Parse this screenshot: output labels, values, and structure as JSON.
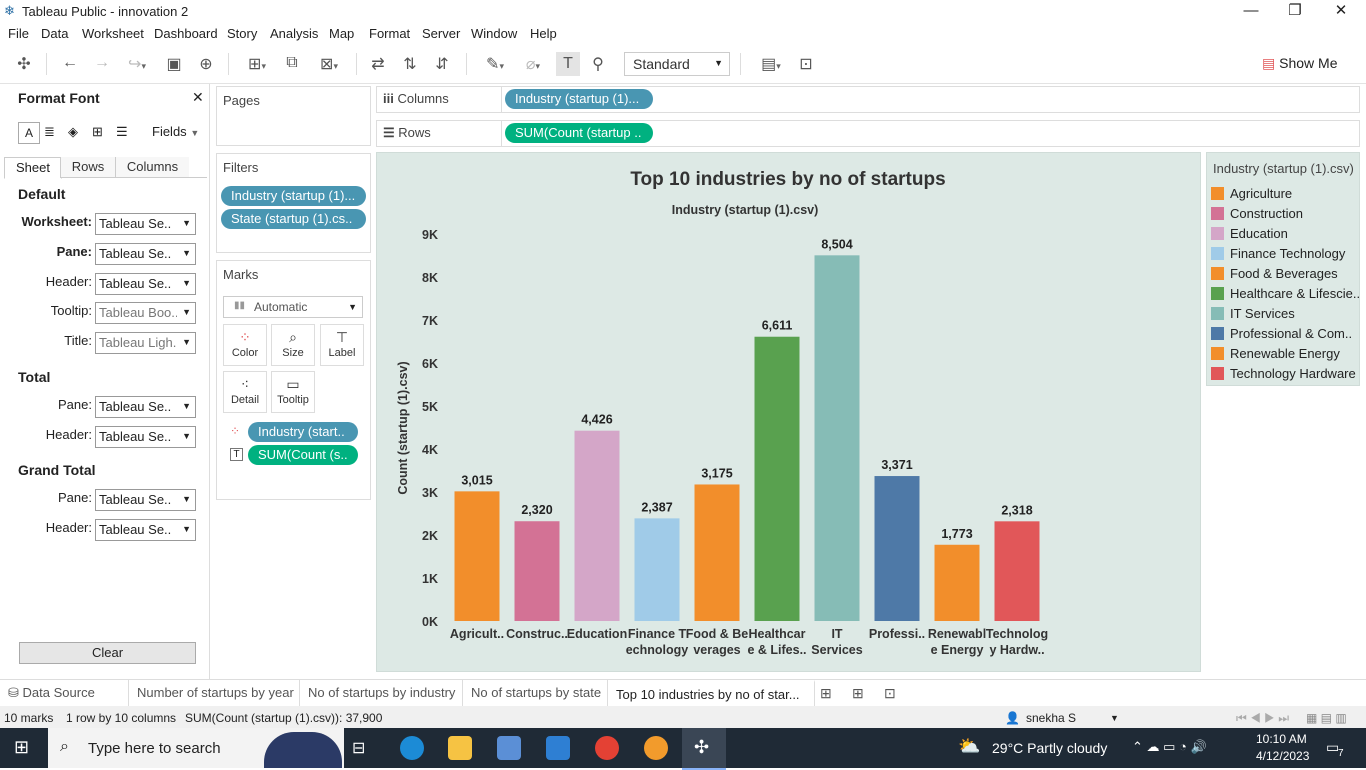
{
  "window": {
    "title": "Tableau Public - innovation 2"
  },
  "menu": [
    "File",
    "Data",
    "Worksheet",
    "Dashboard",
    "Story",
    "Analysis",
    "Map",
    "Format",
    "Server",
    "Window",
    "Help"
  ],
  "toolbar": {
    "view_mode": "Standard",
    "show_me": "Show Me"
  },
  "format_panel": {
    "title": "Format Font",
    "fields_label": "Fields",
    "tabs": [
      "Sheet",
      "Rows",
      "Columns"
    ],
    "sections": {
      "default": "Default",
      "total": "Total",
      "grand_total": "Grand Total"
    },
    "default_rows": [
      {
        "label": "Worksheet:",
        "value": "Tableau Se..",
        "bold": true
      },
      {
        "label": "Pane:",
        "value": "Tableau Se..",
        "bold": true
      },
      {
        "label": "Header:",
        "value": "Tableau Se..",
        "bold": false
      },
      {
        "label": "Tooltip:",
        "value": "Tableau Boo..",
        "bold": false
      },
      {
        "label": "Title:",
        "value": "Tableau Ligh..",
        "bold": false
      }
    ],
    "total_rows": [
      {
        "label": "Pane:",
        "value": "Tableau Se.."
      },
      {
        "label": "Header:",
        "value": "Tableau Se.."
      }
    ],
    "grand_total_rows": [
      {
        "label": "Pane:",
        "value": "Tableau Se.."
      },
      {
        "label": "Header:",
        "value": "Tableau Se.."
      }
    ],
    "clear_label": "Clear"
  },
  "shelves": {
    "pages": "Pages",
    "filters_title": "Filters",
    "filters": [
      "Industry (startup (1)...",
      "State (startup (1).cs.."
    ],
    "marks_title": "Marks",
    "mark_type": "Automatic",
    "mark_buttons": [
      "Color",
      "Size",
      "Label",
      "Detail",
      "Tooltip"
    ],
    "mark_pills": [
      "Industry (start..",
      "SUM(Count (s.."
    ],
    "columns_label": "Columns",
    "columns_pill": "Industry (startup (1)...",
    "rows_label": "Rows",
    "rows_pill": "SUM(Count (startup .."
  },
  "chart_data": {
    "type": "bar",
    "title": "Top 10 industries by no of startups",
    "xlabel": "Industry (startup (1).csv)",
    "ylabel": "Count (startup (1).csv)",
    "ylim": [
      0,
      9000
    ],
    "yticks": [
      0,
      1000,
      2000,
      3000,
      4000,
      5000,
      6000,
      7000,
      8000,
      9000
    ],
    "ytick_labels": [
      "0K",
      "1K",
      "2K",
      "3K",
      "4K",
      "5K",
      "6K",
      "7K",
      "8K",
      "9K"
    ],
    "categories": [
      "Agriculture",
      "Construction",
      "Education",
      "Finance Technology",
      "Food & Beverages",
      "Healthcare & Lifesciences",
      "IT Services",
      "Professional & Commercial Services",
      "Renewable Energy",
      "Technology Hardware"
    ],
    "category_labels": [
      [
        "Agricult.."
      ],
      [
        "Construc.."
      ],
      [
        "Education"
      ],
      [
        "Finance T",
        "echnology"
      ],
      [
        "Food & Be",
        "verages"
      ],
      [
        "Healthcar",
        "e & Lifes.."
      ],
      [
        "IT",
        "Services"
      ],
      [
        "Professi.."
      ],
      [
        "Renewabl",
        "e Energy"
      ],
      [
        "Technolog",
        "y Hardw.."
      ]
    ],
    "values": [
      3015,
      2320,
      4426,
      2387,
      3175,
      6611,
      8504,
      3371,
      1773,
      2318
    ],
    "value_labels": [
      "3,015",
      "2,320",
      "4,426",
      "2,387",
      "3,175",
      "6,611",
      "8,504",
      "3,371",
      "1,773",
      "2,318"
    ],
    "colors": [
      "#f28e2b",
      "#d37295",
      "#d4a6c8",
      "#a0cbe8",
      "#f28e2b",
      "#59a14f",
      "#86bcb6",
      "#4e79a7",
      "#f28e2b",
      "#e15759"
    ]
  },
  "legend": {
    "title": "Industry (startup (1).csv)",
    "items": [
      {
        "label": "Agriculture",
        "color": "#f28e2b"
      },
      {
        "label": "Construction",
        "color": "#d37295"
      },
      {
        "label": "Education",
        "color": "#d4a6c8"
      },
      {
        "label": "Finance Technology",
        "color": "#a0cbe8"
      },
      {
        "label": "Food & Beverages",
        "color": "#f28e2b"
      },
      {
        "label": "Healthcare & Lifescie..",
        "color": "#59a14f"
      },
      {
        "label": "IT Services",
        "color": "#86bcb6"
      },
      {
        "label": "Professional & Com..",
        "color": "#4e79a7"
      },
      {
        "label": "Renewable Energy",
        "color": "#f28e2b"
      },
      {
        "label": "Technology Hardware",
        "color": "#e15759"
      }
    ]
  },
  "sheet_tabs": {
    "data_source": "Data Source",
    "sheets": [
      "Number of startups by year",
      "No of startups by industry",
      "No of startups by state",
      "Top 10 industries by no of star..."
    ],
    "active_index": 3
  },
  "status": {
    "marks": "10 marks",
    "dims": "1 row by 10 columns",
    "sum": "SUM(Count (startup (1).csv)): 37,900",
    "user": "snekha S"
  },
  "taskbar": {
    "search_placeholder": "Type here to search",
    "weather": "29°C  Partly cloudy",
    "time": "10:10 AM",
    "date": "4/12/2023",
    "notifications": "7"
  }
}
